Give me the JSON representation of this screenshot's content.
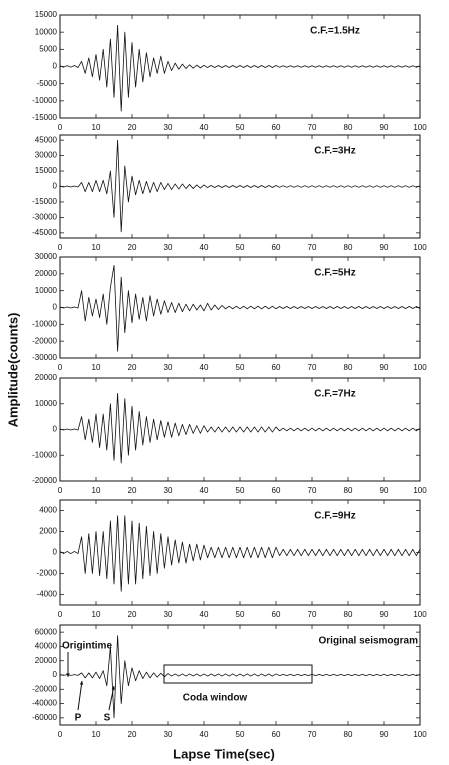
{
  "axis_labels": {
    "x": "Lapse Time(sec)",
    "y": "Amplitude(counts)"
  },
  "chart_data": [
    {
      "type": "line",
      "title": "C.F.=1.5Hz",
      "x": [
        0,
        1,
        2,
        3,
        4,
        5,
        6,
        7,
        8,
        9,
        10,
        11,
        12,
        13,
        14,
        15,
        16,
        17,
        18,
        19,
        20,
        21,
        22,
        23,
        24,
        25,
        26,
        27,
        28,
        29,
        30,
        31,
        32,
        33,
        34,
        35,
        36,
        37,
        38,
        39,
        40,
        41,
        42,
        43,
        44,
        45,
        46,
        47,
        48,
        49,
        50,
        51,
        52,
        53,
        54,
        55,
        56,
        57,
        58,
        59,
        60,
        61,
        62,
        63,
        64,
        65,
        66,
        67,
        68,
        69,
        70,
        71,
        72,
        73,
        74,
        75,
        76,
        77,
        78,
        79,
        80,
        81,
        82,
        83,
        84,
        85,
        86,
        87,
        88,
        89,
        90,
        91,
        92,
        93,
        94,
        95,
        96,
        97,
        98,
        99,
        100
      ],
      "values": [
        200,
        -200,
        250,
        -200,
        300,
        -300,
        1500,
        -2000,
        2500,
        -3000,
        3500,
        -4000,
        5000,
        -6000,
        8000,
        -9000,
        12000,
        -13000,
        10000,
        -9000,
        7000,
        -6000,
        5000,
        -4500,
        4000,
        -3000,
        2500,
        -2000,
        3000,
        -2000,
        1500,
        -1200,
        1000,
        -800,
        700,
        -600,
        500,
        -500,
        400,
        -400,
        350,
        -300,
        300,
        -300,
        300,
        -300,
        300,
        -300,
        300,
        -300,
        300,
        -300,
        300,
        -300,
        300,
        -300,
        300,
        -300,
        300,
        -300,
        300,
        -200,
        200,
        -200,
        200,
        -200,
        200,
        -200,
        200,
        -200,
        200,
        -200,
        200,
        -200,
        200,
        -200,
        200,
        -200,
        200,
        -200,
        200,
        -200,
        200,
        -200,
        200,
        -200,
        200,
        -200,
        200,
        -200,
        200,
        -200,
        200,
        -200,
        200,
        -200,
        200,
        -200,
        200,
        -200,
        200
      ],
      "color": "#111111",
      "xlim": [
        0,
        100
      ],
      "xticks": [
        0,
        10,
        20,
        30,
        40,
        50,
        60,
        70,
        80,
        90,
        100
      ],
      "ylim": [
        -15000,
        15000
      ],
      "yticks": [
        -15000,
        -10000,
        -5000,
        0,
        5000,
        10000,
        15000
      ]
    },
    {
      "type": "line",
      "title": "C.F.=3Hz",
      "x": [
        0,
        1,
        2,
        3,
        4,
        5,
        6,
        7,
        8,
        9,
        10,
        11,
        12,
        13,
        14,
        15,
        16,
        17,
        18,
        19,
        20,
        21,
        22,
        23,
        24,
        25,
        26,
        27,
        28,
        29,
        30,
        31,
        32,
        33,
        34,
        35,
        36,
        37,
        38,
        39,
        40,
        41,
        42,
        43,
        44,
        45,
        46,
        47,
        48,
        49,
        50,
        51,
        52,
        53,
        54,
        55,
        56,
        57,
        58,
        59,
        60,
        61,
        62,
        63,
        64,
        65,
        66,
        67,
        68,
        69,
        70,
        71,
        72,
        73,
        74,
        75,
        76,
        77,
        78,
        79,
        80,
        81,
        82,
        83,
        84,
        85,
        86,
        87,
        88,
        89,
        90,
        91,
        92,
        93,
        94,
        95,
        96,
        97,
        98,
        99,
        100
      ],
      "values": [
        500,
        -500,
        500,
        -500,
        500,
        -500,
        4000,
        -5000,
        4000,
        -5000,
        6000,
        -5000,
        6000,
        -7000,
        15000,
        -30000,
        45000,
        -44000,
        20000,
        -15000,
        10000,
        -8000,
        6000,
        -7000,
        5000,
        -6000,
        4000,
        -5000,
        4000,
        -3000,
        3000,
        -3000,
        2500,
        -2500,
        2500,
        -2000,
        2000,
        -2000,
        1500,
        -1500,
        1500,
        -1000,
        1000,
        -1000,
        1000,
        -1000,
        1000,
        -1000,
        1000,
        -1000,
        1000,
        -1000,
        1000,
        -1000,
        1000,
        -1000,
        1000,
        -1000,
        1000,
        -1000,
        1000,
        -800,
        800,
        -800,
        800,
        -800,
        800,
        -800,
        800,
        -800,
        800,
        -800,
        800,
        -800,
        800,
        -800,
        800,
        -800,
        800,
        -800,
        800,
        -800,
        800,
        -800,
        800,
        -800,
        800,
        -800,
        800,
        -800,
        800,
        -800,
        800,
        -800,
        800,
        -800,
        800,
        -800,
        800,
        -800,
        800
      ],
      "color": "#111111",
      "xlim": [
        0,
        100
      ],
      "xticks": [
        0,
        10,
        20,
        30,
        40,
        50,
        60,
        70,
        80,
        90,
        100
      ],
      "ylim": [
        -50000,
        50000
      ],
      "yticks": [
        -45000,
        -30000,
        -15000,
        0,
        15000,
        30000,
        45000
      ]
    },
    {
      "type": "line",
      "title": "C.F.=5Hz",
      "x": [
        0,
        1,
        2,
        3,
        4,
        5,
        6,
        7,
        8,
        9,
        10,
        11,
        12,
        13,
        14,
        15,
        16,
        17,
        18,
        19,
        20,
        21,
        22,
        23,
        24,
        25,
        26,
        27,
        28,
        29,
        30,
        31,
        32,
        33,
        34,
        35,
        36,
        37,
        38,
        39,
        40,
        41,
        42,
        43,
        44,
        45,
        46,
        47,
        48,
        49,
        50,
        51,
        52,
        53,
        54,
        55,
        56,
        57,
        58,
        59,
        60,
        61,
        62,
        63,
        64,
        65,
        66,
        67,
        68,
        69,
        70,
        71,
        72,
        73,
        74,
        75,
        76,
        77,
        78,
        79,
        80,
        81,
        82,
        83,
        84,
        85,
        86,
        87,
        88,
        89,
        90,
        91,
        92,
        93,
        94,
        95,
        96,
        97,
        98,
        99,
        100
      ],
      "values": [
        300,
        -300,
        300,
        -300,
        300,
        -300,
        10000,
        -8000,
        6000,
        -5000,
        5000,
        -6000,
        8000,
        -10000,
        12000,
        25000,
        -26000,
        18000,
        -15000,
        10000,
        -9000,
        8000,
        -7000,
        6000,
        -8000,
        7000,
        -5000,
        5000,
        -4000,
        4000,
        -3000,
        3000,
        -3000,
        2500,
        -2500,
        2000,
        -2000,
        2000,
        -1500,
        1500,
        -2000,
        2500,
        -1500,
        1500,
        -1200,
        1200,
        -800,
        800,
        -800,
        800,
        -800,
        800,
        -800,
        800,
        -800,
        800,
        -800,
        800,
        -800,
        800,
        -800,
        600,
        -600,
        600,
        -600,
        600,
        -600,
        600,
        -600,
        600,
        -600,
        600,
        -600,
        600,
        -600,
        600,
        -600,
        600,
        -600,
        600,
        -600,
        600,
        -600,
        600,
        -600,
        600,
        -600,
        600,
        -600,
        600,
        -600,
        600,
        -600,
        600,
        -600,
        600,
        -600,
        600,
        -600,
        600,
        -600
      ],
      "color": "#111111",
      "xlim": [
        0,
        100
      ],
      "xticks": [
        0,
        10,
        20,
        30,
        40,
        50,
        60,
        70,
        80,
        90,
        100
      ],
      "ylim": [
        -30000,
        30000
      ],
      "yticks": [
        -30000,
        -20000,
        -10000,
        0,
        10000,
        20000,
        30000
      ]
    },
    {
      "type": "line",
      "title": "C.F.=7Hz",
      "x": [
        0,
        1,
        2,
        3,
        4,
        5,
        6,
        7,
        8,
        9,
        10,
        11,
        12,
        13,
        14,
        15,
        16,
        17,
        18,
        19,
        20,
        21,
        22,
        23,
        24,
        25,
        26,
        27,
        28,
        29,
        30,
        31,
        32,
        33,
        34,
        35,
        36,
        37,
        38,
        39,
        40,
        41,
        42,
        43,
        44,
        45,
        46,
        47,
        48,
        49,
        50,
        51,
        52,
        53,
        54,
        55,
        56,
        57,
        58,
        59,
        60,
        61,
        62,
        63,
        64,
        65,
        66,
        67,
        68,
        69,
        70,
        71,
        72,
        73,
        74,
        75,
        76,
        77,
        78,
        79,
        80,
        81,
        82,
        83,
        84,
        85,
        86,
        87,
        88,
        89,
        90,
        91,
        92,
        93,
        94,
        95,
        96,
        97,
        98,
        99,
        100
      ],
      "values": [
        200,
        -200,
        200,
        -200,
        200,
        -200,
        5000,
        -4000,
        4000,
        -5000,
        6000,
        -7000,
        6000,
        -8000,
        10000,
        -12000,
        14000,
        -13000,
        12000,
        -10000,
        9000,
        -8000,
        7000,
        -6000,
        5000,
        -5000,
        4000,
        -4000,
        3500,
        -3000,
        3000,
        -3000,
        2500,
        -2500,
        2000,
        -2000,
        2000,
        -1500,
        1500,
        -1500,
        1500,
        -1000,
        1000,
        -1000,
        1000,
        -1000,
        1000,
        -1000,
        1000,
        -1000,
        1000,
        -1000,
        1000,
        -1000,
        1000,
        -1000,
        1000,
        -1000,
        1000,
        -1000,
        1000,
        -500,
        500,
        -500,
        500,
        -500,
        500,
        -500,
        500,
        -500,
        500,
        -500,
        500,
        -500,
        500,
        -500,
        500,
        -500,
        500,
        -500,
        500,
        -500,
        500,
        -500,
        500,
        -500,
        500,
        -500,
        500,
        -500,
        500,
        -500,
        500,
        -500,
        500,
        -500,
        500,
        -500,
        500,
        -500,
        500
      ],
      "color": "#111111",
      "xlim": [
        0,
        100
      ],
      "xticks": [
        0,
        10,
        20,
        30,
        40,
        50,
        60,
        70,
        80,
        90,
        100
      ],
      "ylim": [
        -20000,
        20000
      ],
      "yticks": [
        -20000,
        -10000,
        0,
        10000,
        20000
      ]
    },
    {
      "type": "line",
      "title": "C.F.=9Hz",
      "x": [
        0,
        1,
        2,
        3,
        4,
        5,
        6,
        7,
        8,
        9,
        10,
        11,
        12,
        13,
        14,
        15,
        16,
        17,
        18,
        19,
        20,
        21,
        22,
        23,
        24,
        25,
        26,
        27,
        28,
        29,
        30,
        31,
        32,
        33,
        34,
        35,
        36,
        37,
        38,
        39,
        40,
        41,
        42,
        43,
        44,
        45,
        46,
        47,
        48,
        49,
        50,
        51,
        52,
        53,
        54,
        55,
        56,
        57,
        58,
        59,
        60,
        61,
        62,
        63,
        64,
        65,
        66,
        67,
        68,
        69,
        70,
        71,
        72,
        73,
        74,
        75,
        76,
        77,
        78,
        79,
        80,
        81,
        82,
        83,
        84,
        85,
        86,
        87,
        88,
        89,
        90,
        91,
        92,
        93,
        94,
        95,
        96,
        97,
        98,
        99,
        100
      ],
      "values": [
        100,
        -100,
        100,
        -100,
        100,
        -100,
        1500,
        -2000,
        1800,
        -2000,
        2000,
        -2200,
        2000,
        -2500,
        3000,
        -3000,
        3500,
        -3700,
        3500,
        -3000,
        3000,
        -3000,
        2800,
        -2500,
        2500,
        -2200,
        2000,
        -2000,
        1800,
        -1500,
        1500,
        -1200,
        1200,
        -1000,
        1000,
        -1000,
        800,
        -800,
        800,
        -700,
        700,
        -500,
        500,
        -500,
        500,
        -500,
        500,
        -500,
        500,
        -500,
        500,
        -500,
        500,
        -500,
        500,
        -500,
        500,
        -500,
        500,
        -500,
        500,
        -300,
        300,
        -300,
        300,
        -300,
        300,
        -300,
        300,
        -300,
        300,
        -300,
        300,
        -300,
        300,
        -300,
        300,
        -300,
        300,
        -300,
        300,
        -300,
        300,
        -300,
        300,
        -300,
        300,
        -300,
        300,
        -300,
        300,
        -300,
        300,
        -300,
        300,
        -300,
        300,
        -300,
        300,
        -300,
        300
      ],
      "color": "#111111",
      "xlim": [
        0,
        100
      ],
      "xticks": [
        0,
        10,
        20,
        30,
        40,
        50,
        60,
        70,
        80,
        90,
        100
      ],
      "ylim": [
        -5000,
        5000
      ],
      "yticks": [
        -4000,
        -2000,
        0,
        2000,
        4000
      ]
    },
    {
      "type": "line",
      "title": "Original seismogram",
      "annotations": [
        "Origintime",
        "P",
        "S",
        "Coda window"
      ],
      "x": [
        0,
        1,
        2,
        3,
        4,
        5,
        6,
        7,
        8,
        9,
        10,
        11,
        12,
        13,
        14,
        15,
        16,
        17,
        18,
        19,
        20,
        21,
        22,
        23,
        24,
        25,
        26,
        27,
        28,
        29,
        30,
        31,
        32,
        33,
        34,
        35,
        36,
        37,
        38,
        39,
        40,
        41,
        42,
        43,
        44,
        45,
        46,
        47,
        48,
        49,
        50,
        51,
        52,
        53,
        54,
        55,
        56,
        57,
        58,
        59,
        60,
        61,
        62,
        63,
        64,
        65,
        66,
        67,
        68,
        69,
        70,
        71,
        72,
        73,
        74,
        75,
        76,
        77,
        78,
        79,
        80,
        81,
        82,
        83,
        84,
        85,
        86,
        87,
        88,
        89,
        90,
        91,
        92,
        93,
        94,
        95,
        96,
        97,
        98,
        99,
        100
      ],
      "values": [
        500,
        -500,
        500,
        -500,
        500,
        -500,
        3000,
        -4000,
        3000,
        -4000,
        4000,
        -5000,
        6000,
        -15000,
        40000,
        -60000,
        55000,
        -40000,
        20000,
        -15000,
        10000,
        -8000,
        6000,
        -5000,
        4000,
        -4000,
        3000,
        -3000,
        2500,
        -2500,
        2000,
        -1500,
        1500,
        -1500,
        1500,
        -1500,
        1500,
        -1500,
        1500,
        -1500,
        1500,
        -1500,
        1500,
        -1500,
        1500,
        -1500,
        1500,
        -1500,
        1500,
        -1500,
        1500,
        -1500,
        1500,
        -1500,
        1500,
        -1500,
        1500,
        -1500,
        1500,
        -1500,
        1500,
        -800,
        800,
        -800,
        800,
        -800,
        800,
        -800,
        800,
        -800,
        800,
        -800,
        800,
        -800,
        800,
        -800,
        800,
        -800,
        800,
        -800,
        800,
        -800,
        800,
        -800,
        800,
        -800,
        800,
        -800,
        800,
        -800,
        800,
        -800,
        800,
        -800,
        800,
        -800,
        800,
        -800,
        800,
        -800,
        800
      ],
      "color": "#111111",
      "xlim": [
        0,
        100
      ],
      "xticks": [
        0,
        10,
        20,
        30,
        40,
        50,
        60,
        70,
        80,
        90,
        100
      ],
      "ylim": [
        -70000,
        70000
      ],
      "yticks": [
        -60000,
        -40000,
        -20000,
        0,
        20000,
        40000,
        60000
      ]
    }
  ]
}
